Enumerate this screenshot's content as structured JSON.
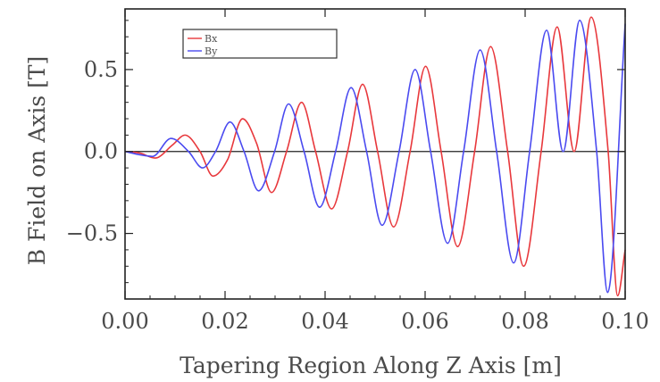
{
  "chart_data": {
    "type": "line",
    "title": "",
    "xlabel": "Tapering Region Along Z Axis [m]",
    "ylabel": "B Field on Axis [T]",
    "xlim": [
      0.0,
      0.1
    ],
    "ylim": [
      -0.9,
      0.87
    ],
    "x_ticks": [
      {
        "value": 0.0,
        "label": "0.00"
      },
      {
        "value": 0.02,
        "label": "0.02"
      },
      {
        "value": 0.04,
        "label": "0.04"
      },
      {
        "value": 0.06,
        "label": "0.06"
      },
      {
        "value": 0.08,
        "label": "0.08"
      },
      {
        "value": 0.1,
        "label": "0.10"
      }
    ],
    "y_ticks": [
      {
        "value": -0.5,
        "label": "−0.5"
      },
      {
        "value": 0.0,
        "label": "0.0"
      },
      {
        "value": 0.5,
        "label": "0.5"
      }
    ],
    "grid": false,
    "zero_line": true,
    "legend": {
      "placement": "top-left"
    },
    "series": [
      {
        "name": "Bx",
        "color": "#e8383c",
        "x": [
          0.0,
          0.003,
          0.006,
          0.0095,
          0.012,
          0.015,
          0.0176,
          0.0205,
          0.0235,
          0.0263,
          0.0293,
          0.0323,
          0.0353,
          0.0381,
          0.0413,
          0.0445,
          0.0475,
          0.0505,
          0.0537,
          0.057,
          0.0601,
          0.0632,
          0.0665,
          0.0699,
          0.0731,
          0.0765,
          0.0797,
          0.0832,
          0.0864,
          0.0898,
          0.0932,
          0.0966,
          0.0985,
          0.1
        ],
        "y": [
          0.0,
          -0.01,
          -0.04,
          0.04,
          0.1,
          0.0,
          -0.15,
          -0.05,
          0.2,
          0.05,
          -0.25,
          0.0,
          0.3,
          0.0,
          -0.35,
          0.0,
          0.41,
          0.0,
          -0.46,
          0.0,
          0.52,
          0.0,
          -0.58,
          0.0,
          0.64,
          0.0,
          -0.7,
          0.0,
          0.76,
          0.0,
          0.82,
          0.0,
          -0.88,
          -0.6
        ]
      },
      {
        "name": "By",
        "color": "#4a4af0",
        "x": [
          0.0,
          0.003,
          0.0055,
          0.0092,
          0.0127,
          0.0155,
          0.0181,
          0.021,
          0.0238,
          0.0267,
          0.0299,
          0.0327,
          0.0358,
          0.0389,
          0.0421,
          0.0452,
          0.0483,
          0.0514,
          0.0548,
          0.058,
          0.0611,
          0.0645,
          0.0677,
          0.071,
          0.0743,
          0.0777,
          0.0809,
          0.0843,
          0.0876,
          0.0909,
          0.0943,
          0.0965,
          0.1
        ],
        "y": [
          0.0,
          -0.02,
          -0.03,
          0.08,
          0.0,
          -0.1,
          0.0,
          0.18,
          0.0,
          -0.24,
          0.0,
          0.29,
          0.0,
          -0.34,
          0.0,
          0.39,
          0.0,
          -0.45,
          0.0,
          0.5,
          0.0,
          -0.56,
          0.0,
          0.62,
          0.0,
          -0.68,
          0.0,
          0.74,
          0.0,
          0.8,
          0.0,
          -0.86,
          0.78
        ]
      }
    ]
  }
}
